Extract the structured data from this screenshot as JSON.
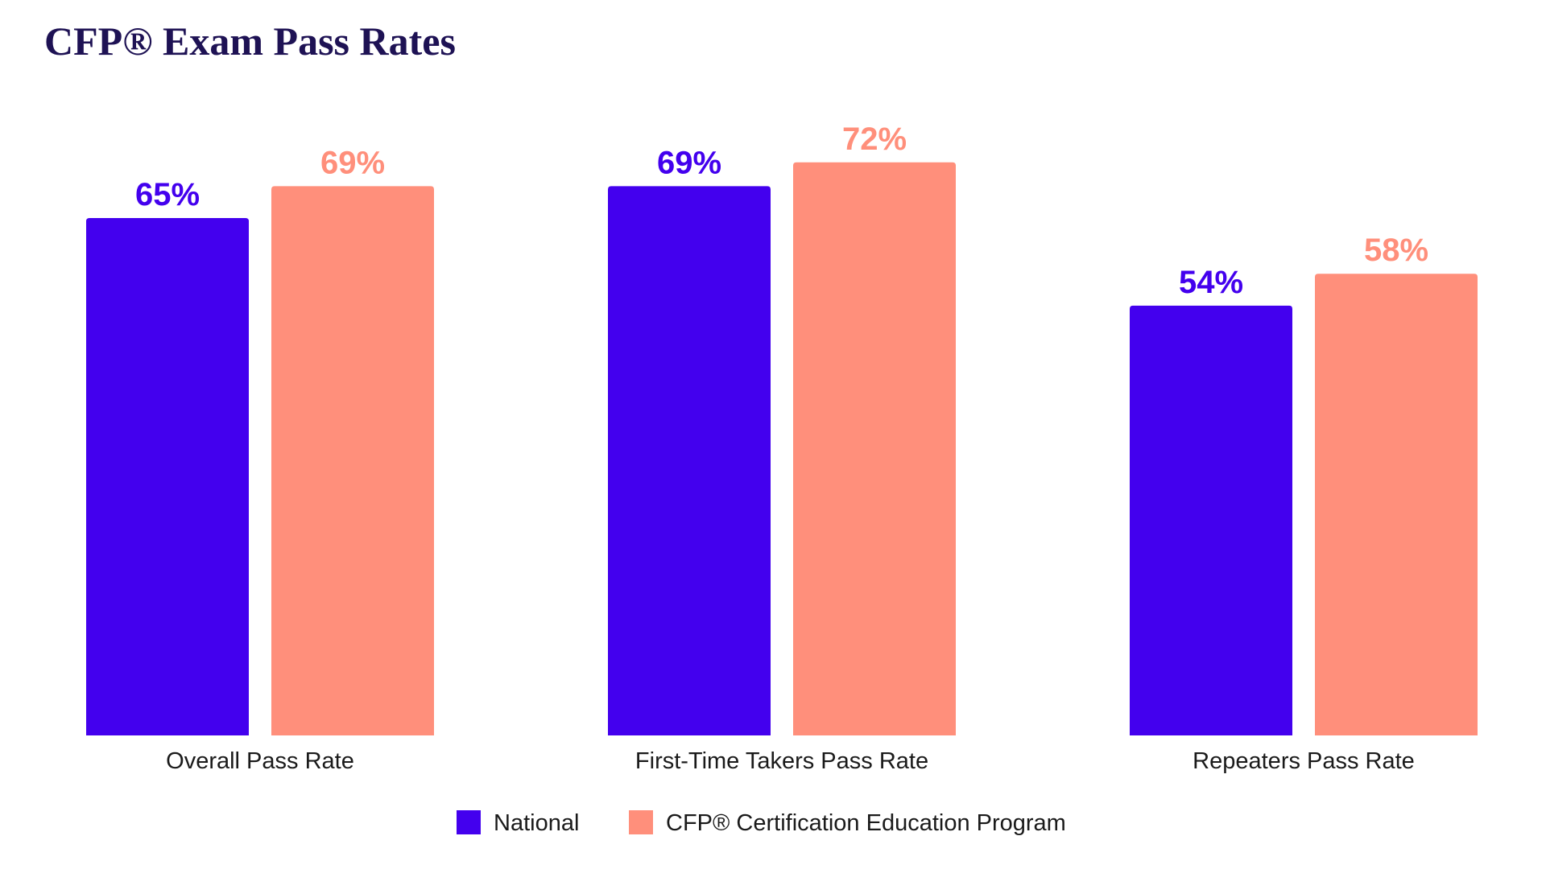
{
  "colors": {
    "national": "#4300ee",
    "program": "#ff8f7b",
    "title": "#1e1254",
    "text": "#1a1a1a"
  },
  "chart_data": {
    "type": "bar",
    "title": "CFP® Exam Pass Rates",
    "xlabel": "",
    "ylabel": "",
    "ylim": [
      0,
      100
    ],
    "grid": false,
    "legend_position": "bottom-center",
    "categories": [
      "Overall Pass Rate",
      "First-Time Takers Pass Rate",
      "Repeaters Pass Rate"
    ],
    "series": [
      {
        "name": "National",
        "color": "#4300ee",
        "values": [
          65,
          69,
          54
        ],
        "labels": [
          "65%",
          "69%",
          "54%"
        ]
      },
      {
        "name": "CFP® Certification Education Program",
        "color": "#ff8f7b",
        "values": [
          69,
          72,
          58
        ],
        "labels": [
          "69%",
          "72%",
          "58%"
        ]
      }
    ]
  }
}
